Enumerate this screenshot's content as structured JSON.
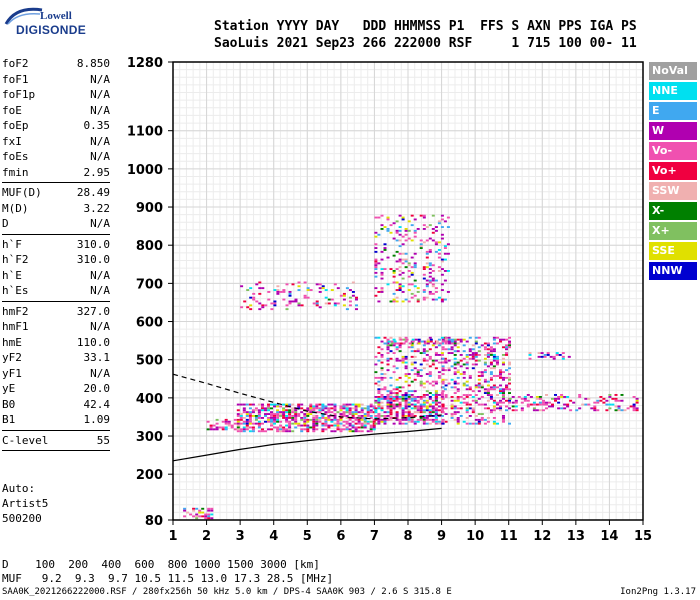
{
  "logo": {
    "line1": "Lowell",
    "line2": "DIGISONDE"
  },
  "header": {
    "line1": "Station YYYY DAY   DDD HHMMSS P1  FFS S AXN PPS IGA PS",
    "line2": "SaoLuis 2021 Sep23 266 222000 RSF     1 715 100 00- 11"
  },
  "params": [
    [
      {
        "name": "foF2",
        "value": "8.850"
      },
      {
        "name": "foF1",
        "value": "N/A"
      },
      {
        "name": "foF1p",
        "value": "N/A"
      },
      {
        "name": "foE",
        "value": "N/A"
      },
      {
        "name": "foEp",
        "value": "0.35"
      },
      {
        "name": "fxI",
        "value": "N/A"
      },
      {
        "name": "foEs",
        "value": "N/A"
      },
      {
        "name": "fmin",
        "value": "2.95"
      }
    ],
    [
      {
        "name": "MUF(D)",
        "value": "28.49"
      },
      {
        "name": "M(D)",
        "value": "3.22"
      },
      {
        "name": "D",
        "value": "N/A"
      }
    ],
    [
      {
        "name": "h`F",
        "value": "310.0"
      },
      {
        "name": "h`F2",
        "value": "310.0"
      },
      {
        "name": "h`E",
        "value": "N/A"
      },
      {
        "name": "h`Es",
        "value": "N/A"
      }
    ],
    [
      {
        "name": "hmF2",
        "value": "327.0"
      },
      {
        "name": "hmF1",
        "value": "N/A"
      },
      {
        "name": "hmE",
        "value": "110.0"
      },
      {
        "name": "yF2",
        "value": "33.1"
      },
      {
        "name": "yF1",
        "value": "N/A"
      },
      {
        "name": "yE",
        "value": "20.0"
      },
      {
        "name": "B0",
        "value": "42.4"
      },
      {
        "name": "B1",
        "value": "1.09"
      }
    ],
    [
      {
        "name": "C-level",
        "value": "55"
      }
    ]
  ],
  "auto": {
    "line1": "Auto:",
    "line2": "Artist5",
    "line3": "500200"
  },
  "legend": [
    {
      "label": "NoVal",
      "color": "#a0a0a0"
    },
    {
      "label": "NNE",
      "color": "#00e0f0"
    },
    {
      "label": "E",
      "color": "#40a8f0"
    },
    {
      "label": "W",
      "color": "#b000b0"
    },
    {
      "label": "Vo-",
      "color": "#f050b0"
    },
    {
      "label": "Vo+",
      "color": "#f00040"
    },
    {
      "label": "SSW",
      "color": "#f0b0b0"
    },
    {
      "label": "X-",
      "color": "#008000"
    },
    {
      "label": "X+",
      "color": "#80c060"
    },
    {
      "label": "SSE",
      "color": "#e0e000"
    },
    {
      "label": "NNW",
      "color": "#0000d0"
    }
  ],
  "footer": {
    "line1": "D    100  200  400  600  800 1000 1500 3000 [km]",
    "line2": "MUF   9.2  9.3  9.7 10.5 11.5 13.0 17.3 28.5 [MHz]",
    "line3": "SAA0K_2021266222000.RSF / 280fx256h 50 kHz 5.0 km / DPS-4 SAA0K 903 / 2.6 S 315.8 E",
    "version": "Ion2Png 1.3.17"
  },
  "chart_data": {
    "type": "scatter",
    "xlim": [
      1,
      15
    ],
    "ylim": [
      80,
      1280
    ],
    "x_ticks": [
      1,
      2,
      3,
      4,
      5,
      6,
      7,
      8,
      9,
      10,
      11,
      12,
      13,
      14,
      15
    ],
    "y_ticks": [
      80,
      200,
      300,
      400,
      500,
      600,
      700,
      800,
      900,
      1000,
      1100,
      1280
    ],
    "grid": true,
    "trace_curve": [
      [
        1,
        235
      ],
      [
        2,
        250
      ],
      [
        3,
        265
      ],
      [
        4,
        278
      ],
      [
        5,
        288
      ],
      [
        6,
        297
      ],
      [
        7,
        305
      ],
      [
        8,
        312
      ],
      [
        9,
        320
      ]
    ],
    "profile_dashed": [
      [
        1,
        462
      ],
      [
        2,
        438
      ],
      [
        3,
        412
      ],
      [
        4,
        388
      ],
      [
        5,
        365
      ],
      [
        6,
        350
      ],
      [
        7,
        345
      ],
      [
        8,
        348
      ],
      [
        9,
        355
      ]
    ],
    "echo_clusters": [
      {
        "x": [
          2.0,
          2.9
        ],
        "y": [
          315,
          345
        ],
        "density": 0.45
      },
      {
        "x": [
          2.9,
          7.0
        ],
        "y": [
          310,
          385
        ],
        "density": 0.65
      },
      {
        "x": [
          7.0,
          9.0
        ],
        "y": [
          330,
          410
        ],
        "density": 0.7
      },
      {
        "x": [
          7.0,
          9.1
        ],
        "y": [
          400,
          560
        ],
        "density": 0.28
      },
      {
        "x": [
          9.0,
          11.0
        ],
        "y": [
          330,
          560
        ],
        "density": 0.32
      },
      {
        "x": [
          11.0,
          14.8
        ],
        "y": [
          365,
          410
        ],
        "density": 0.3
      },
      {
        "x": [
          11.5,
          12.8
        ],
        "y": [
          500,
          520
        ],
        "density": 0.35
      },
      {
        "x": [
          3.0,
          6.5
        ],
        "y": [
          630,
          705
        ],
        "density": 0.16
      },
      {
        "x": [
          7.0,
          9.2
        ],
        "y": [
          650,
          880
        ],
        "density": 0.2
      },
      {
        "x": [
          1.3,
          2.2
        ],
        "y": [
          82,
          112
        ],
        "density": 0.5
      },
      {
        "x": [
          7.3,
          9.3
        ],
        "y": [
          540,
          555
        ],
        "density": 0.55
      }
    ]
  }
}
